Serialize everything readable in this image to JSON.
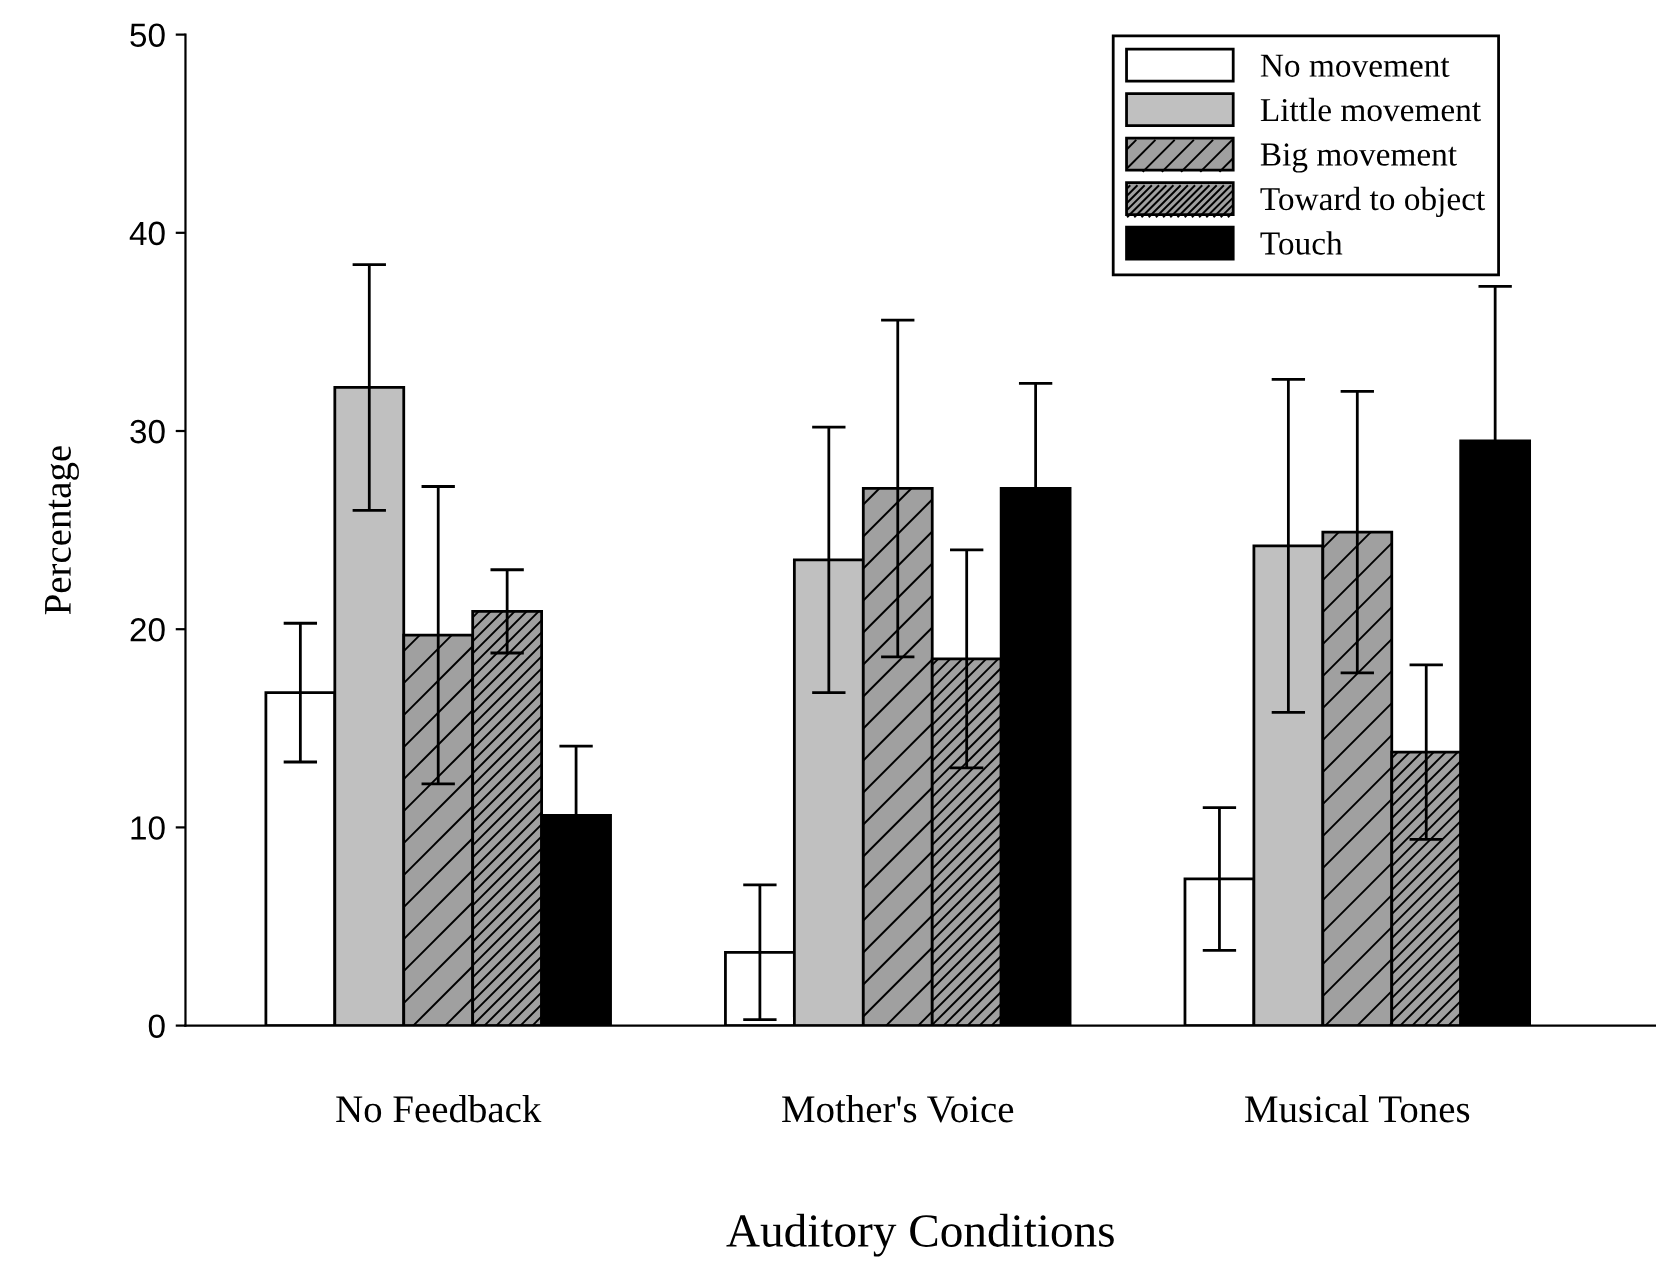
{
  "chart_data": {
    "type": "bar",
    "xlabel": "Auditory Conditions",
    "ylabel": "Percentage",
    "categories": [
      "No Feedback",
      "Mother's Voice",
      "Musical Tones"
    ],
    "series": [
      {
        "name": "No movement",
        "color": "#ffffff",
        "values": [
          16.8,
          3.7,
          7.4
        ],
        "errors": [
          3.5,
          3.4,
          3.6
        ]
      },
      {
        "name": "Little movement",
        "color": "#c0c0c0",
        "values": [
          32.2,
          23.5,
          24.2
        ],
        "errors": [
          6.2,
          6.7,
          8.4
        ]
      },
      {
        "name": "Big movement",
        "color": "#a0a0a0",
        "values": [
          19.7,
          27.1,
          24.9
        ],
        "errors": [
          7.5,
          8.5,
          7.1
        ]
      },
      {
        "name": "Toward to object",
        "color": "#a0a0a0",
        "values": [
          20.9,
          18.5,
          13.8
        ],
        "errors": [
          2.1,
          5.5,
          4.4
        ]
      },
      {
        "name": "Touch",
        "color": "#000000",
        "values": [
          10.6,
          27.1,
          29.5
        ],
        "errors": [
          3.5,
          5.3,
          7.8
        ]
      }
    ],
    "ylim": [
      0,
      50
    ],
    "yticks": [
      0,
      10,
      20,
      30,
      40,
      50
    ],
    "grid": false,
    "legend": "top right"
  }
}
